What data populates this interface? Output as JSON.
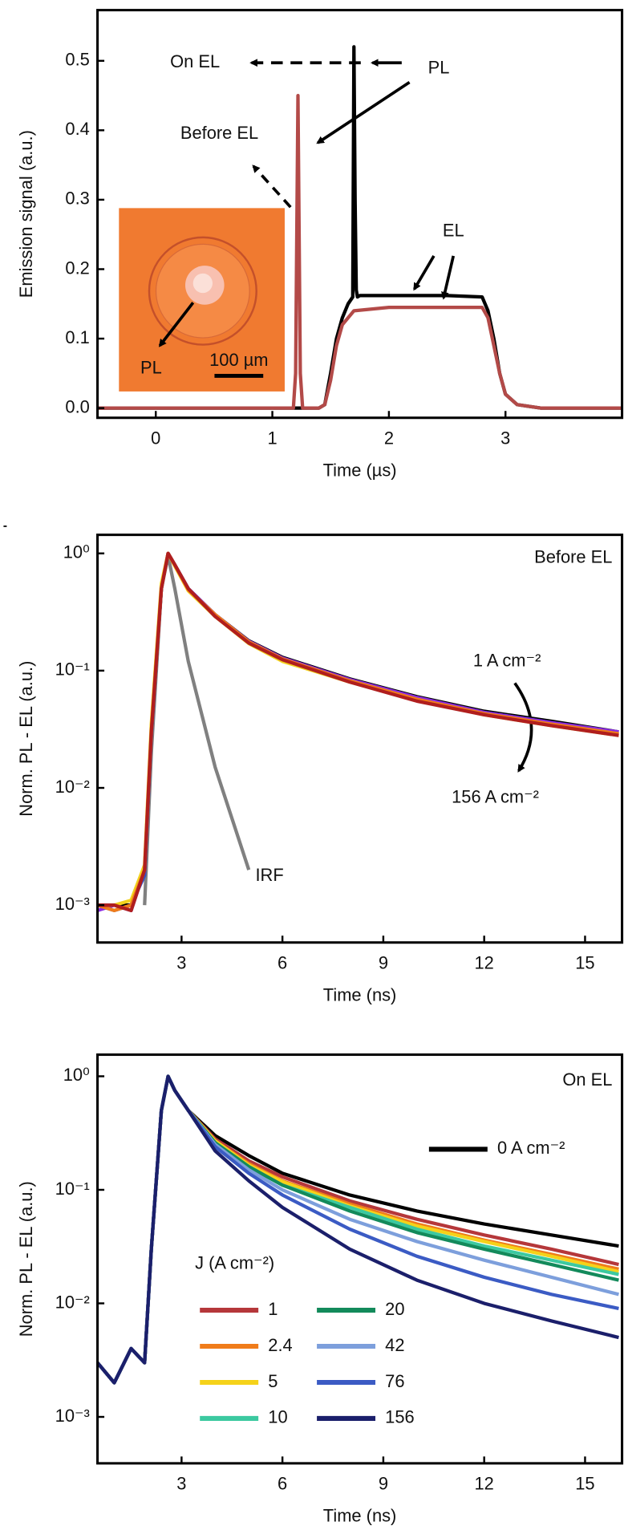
{
  "chart_data": [
    {
      "type": "line",
      "panel": "a",
      "xlabel": "Time (µs)",
      "ylabel": "Emission signal (a.u.)",
      "xlim": [
        -0.5,
        4
      ],
      "xticks": [
        0,
        1,
        2,
        3
      ],
      "ylim": [
        -0.014,
        0.573
      ],
      "yticks": [
        {
          "value": 0,
          "label": "0.0"
        },
        0.1,
        0.2,
        0.3,
        0.4,
        0.5
      ],
      "annotations": [
        "On EL",
        "PL",
        "Before EL",
        "EL",
        "PL",
        "100 µm"
      ],
      "series": [
        {
          "color": "#000000",
          "x": [
            -0.5,
            1.2,
            1.4,
            1.45,
            1.5,
            1.55,
            1.6,
            1.65,
            1.69,
            1.7,
            1.71,
            1.72,
            1.73,
            1.75,
            2.0,
            2.5,
            2.8,
            2.85,
            2.9,
            2.95,
            3.0,
            3.1,
            3.3,
            4.0
          ],
          "values": [
            0,
            0,
            0,
            0.005,
            0.05,
            0.1,
            0.13,
            0.15,
            0.16,
            0.52,
            0.3,
            0.17,
            0.16,
            0.162,
            0.162,
            0.162,
            0.16,
            0.14,
            0.1,
            0.05,
            0.02,
            0.005,
            0,
            0
          ]
        },
        {
          "color": "#b34a48",
          "x": [
            -0.5,
            1.18,
            1.2,
            1.22,
            1.24,
            1.26,
            1.4,
            1.45,
            1.5,
            1.55,
            1.6,
            1.7,
            2.0,
            2.5,
            2.8,
            2.85,
            2.9,
            2.95,
            3.0,
            3.1,
            3.3,
            4.0
          ],
          "values": [
            0,
            0,
            0.05,
            0.45,
            0.05,
            0,
            0,
            0.005,
            0.04,
            0.09,
            0.12,
            0.14,
            0.145,
            0.145,
            0.145,
            0.13,
            0.09,
            0.05,
            0.02,
            0.005,
            0,
            0
          ]
        }
      ]
    },
    {
      "type": "line",
      "panel": "b",
      "xlabel": "Time (ns)",
      "ylabel": "Norm. PL - EL (a.u.)",
      "log_y": true,
      "xlim": [
        0.5,
        16.1
      ],
      "xticks": [
        3,
        6,
        9,
        12,
        15
      ],
      "ylim": [
        0.00048,
        1.44
      ],
      "yticks": [
        {
          "value": 0.001,
          "label": "10⁻³"
        },
        {
          "value": 0.01,
          "label": "10⁻²"
        },
        {
          "value": 0.1,
          "label": "10⁻¹"
        },
        {
          "value": 1,
          "label": "10⁰"
        }
      ],
      "annotations": [
        "Before EL",
        "1 A cm⁻²",
        "156 A cm⁻²",
        "IRF"
      ],
      "x": [
        0.5,
        1.0,
        1.5,
        1.9,
        2.1,
        2.4,
        2.6,
        2.8,
        3.2,
        4,
        5,
        6,
        8,
        10,
        12,
        14,
        16
      ],
      "series": [
        {
          "color": "#808080",
          "values": [
            null,
            null,
            null,
            0.001,
            0.02,
            0.5,
            0.95,
            0.5,
            0.12,
            0.015,
            0.002,
            null,
            null,
            null,
            null,
            null,
            null
          ]
        },
        {
          "color": "#000000",
          "values": [
            0.001,
            0.001,
            0.001,
            0.002,
            0.03,
            0.5,
            1.0,
            0.8,
            0.5,
            0.3,
            0.18,
            0.13,
            0.085,
            0.06,
            0.045,
            0.037,
            0.03
          ]
        },
        {
          "color": "#3050c0",
          "values": [
            0.001,
            0.0009,
            0.001,
            0.0018,
            0.028,
            0.5,
            1.0,
            0.79,
            0.49,
            0.29,
            0.175,
            0.125,
            0.082,
            0.058,
            0.044,
            0.036,
            0.029
          ]
        },
        {
          "color": "#8a2be2",
          "values": [
            0.0009,
            0.001,
            0.0009,
            0.002,
            0.03,
            0.52,
            1.0,
            0.8,
            0.5,
            0.3,
            0.178,
            0.128,
            0.084,
            0.059,
            0.044,
            0.036,
            0.03
          ]
        },
        {
          "color": "#f2d21e",
          "values": [
            0.001,
            0.001,
            0.0011,
            0.0022,
            0.035,
            0.55,
            1.0,
            0.78,
            0.48,
            0.29,
            0.17,
            0.12,
            0.08,
            0.056,
            0.042,
            0.034,
            0.028
          ]
        },
        {
          "color": "#f07c1a",
          "values": [
            0.001,
            0.0009,
            0.001,
            0.002,
            0.03,
            0.5,
            1.0,
            0.8,
            0.49,
            0.3,
            0.176,
            0.126,
            0.082,
            0.057,
            0.043,
            0.035,
            0.029
          ]
        },
        {
          "color": "#b01e1e",
          "values": [
            0.001,
            0.001,
            0.0009,
            0.002,
            0.03,
            0.5,
            1.0,
            0.8,
            0.5,
            0.29,
            0.172,
            0.124,
            0.08,
            0.055,
            0.042,
            0.034,
            0.028
          ]
        }
      ]
    },
    {
      "type": "line",
      "panel": "c",
      "xlabel": "Time (ns)",
      "ylabel": "Norm. PL - EL (a.u.)",
      "log_y": true,
      "xlim": [
        0.5,
        16.1
      ],
      "xticks": [
        3,
        6,
        9,
        12,
        15
      ],
      "ylim": [
        0.00039,
        1.55
      ],
      "yticks": [
        {
          "value": 0.001,
          "label": "10⁻³"
        },
        {
          "value": 0.01,
          "label": "10⁻²"
        },
        {
          "value": 0.1,
          "label": "10⁻¹"
        },
        {
          "value": 1,
          "label": "10⁰"
        }
      ],
      "annotations": [
        "On EL"
      ],
      "legend_title": "J (A cm⁻²)",
      "x": [
        0.5,
        1.0,
        1.5,
        1.9,
        2.1,
        2.4,
        2.6,
        2.8,
        3.2,
        4,
        5,
        6,
        8,
        10,
        12,
        14,
        16
      ],
      "series": [
        {
          "name": "0 A cm⁻²",
          "color": "#000000",
          "values": [
            0.003,
            0.002,
            0.004,
            0.003,
            0.03,
            0.5,
            1.0,
            0.75,
            0.5,
            0.3,
            0.2,
            0.14,
            0.09,
            0.065,
            0.05,
            0.04,
            0.032
          ]
        },
        {
          "name": "1",
          "color": "#b5373a",
          "values": [
            0.003,
            0.002,
            0.004,
            0.003,
            0.03,
            0.5,
            1.0,
            0.75,
            0.5,
            0.28,
            0.18,
            0.13,
            0.08,
            0.055,
            0.04,
            0.03,
            0.022
          ]
        },
        {
          "name": "2.4",
          "color": "#f07c1a",
          "values": [
            0.003,
            0.002,
            0.004,
            0.003,
            0.03,
            0.5,
            1.0,
            0.75,
            0.5,
            0.27,
            0.17,
            0.12,
            0.075,
            0.05,
            0.036,
            0.027,
            0.02
          ]
        },
        {
          "name": "5",
          "color": "#f5d21a",
          "values": [
            0.003,
            0.002,
            0.004,
            0.003,
            0.03,
            0.5,
            1.0,
            0.75,
            0.5,
            0.27,
            0.165,
            0.118,
            0.072,
            0.048,
            0.035,
            0.026,
            0.019
          ]
        },
        {
          "name": "10",
          "color": "#3cc9a0",
          "values": [
            0.003,
            0.002,
            0.004,
            0.003,
            0.03,
            0.5,
            1.0,
            0.75,
            0.5,
            0.26,
            0.16,
            0.11,
            0.07,
            0.045,
            0.032,
            0.024,
            0.018
          ]
        },
        {
          "name": "20",
          "color": "#138a5b",
          "values": [
            0.003,
            0.002,
            0.004,
            0.003,
            0.03,
            0.5,
            1.0,
            0.75,
            0.5,
            0.26,
            0.16,
            0.11,
            0.065,
            0.042,
            0.03,
            0.022,
            0.016
          ]
        },
        {
          "name": "42",
          "color": "#7d9fdc",
          "values": [
            0.003,
            0.002,
            0.004,
            0.003,
            0.03,
            0.5,
            1.0,
            0.75,
            0.5,
            0.25,
            0.15,
            0.1,
            0.055,
            0.035,
            0.024,
            0.017,
            0.012
          ]
        },
        {
          "name": "76",
          "color": "#3b5bc4",
          "values": [
            0.003,
            0.002,
            0.004,
            0.003,
            0.03,
            0.5,
            1.0,
            0.75,
            0.5,
            0.24,
            0.14,
            0.09,
            0.045,
            0.026,
            0.017,
            0.012,
            0.009
          ]
        },
        {
          "name": "156",
          "color": "#1b1f6b",
          "values": [
            0.003,
            0.002,
            0.004,
            0.003,
            0.03,
            0.5,
            1.0,
            0.75,
            0.5,
            0.22,
            0.12,
            0.07,
            0.03,
            0.016,
            0.01,
            0.007,
            0.005
          ]
        }
      ]
    }
  ]
}
